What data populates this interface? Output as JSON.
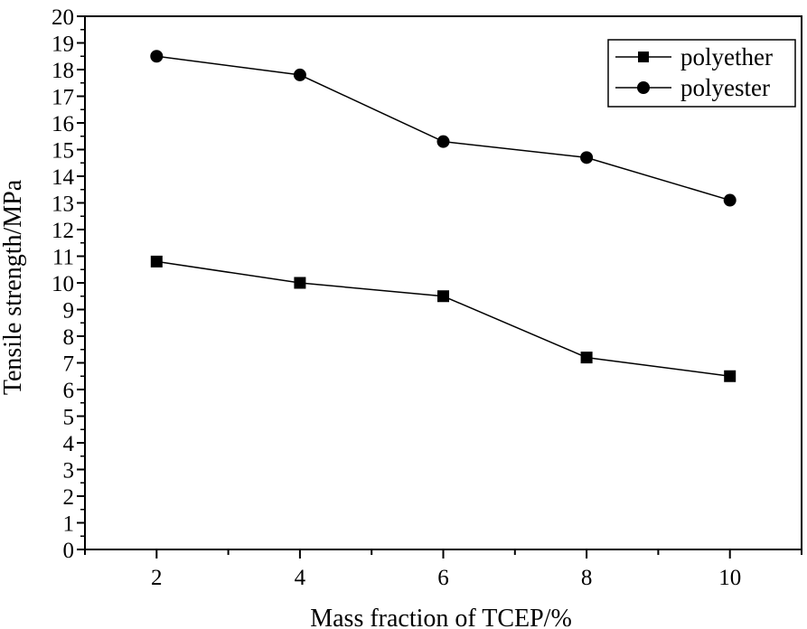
{
  "chart_data": {
    "type": "line",
    "xlabel": "Mass fraction of TCEP/%",
    "ylabel": "Tensile strength/MPa",
    "x": [
      2,
      4,
      6,
      8,
      10
    ],
    "xlim": [
      1,
      11
    ],
    "ylim": [
      0,
      20
    ],
    "x_ticks": [
      2,
      4,
      6,
      8,
      10
    ],
    "y_ticks": [
      0,
      1,
      2,
      3,
      4,
      5,
      6,
      7,
      8,
      9,
      10,
      11,
      12,
      13,
      14,
      15,
      16,
      17,
      18,
      19,
      20
    ],
    "grid": false,
    "legend_position": "top-right",
    "series": [
      {
        "name": "polyether",
        "marker": "square",
        "color": "#000000",
        "values": [
          10.8,
          10.0,
          9.5,
          7.2,
          6.5
        ]
      },
      {
        "name": "polyester",
        "marker": "circle",
        "color": "#000000",
        "values": [
          18.5,
          17.8,
          15.3,
          14.7,
          13.1
        ]
      }
    ]
  }
}
